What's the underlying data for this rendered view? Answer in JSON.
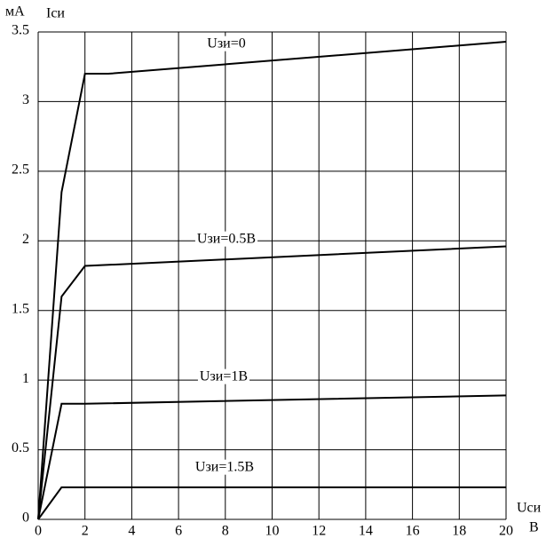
{
  "chart_data": {
    "type": "line",
    "y_unit": "мА",
    "y_label": "Iси",
    "x_label": "Uси",
    "x_unit": "В",
    "xlim": [
      0,
      20
    ],
    "xticks": [
      0,
      2,
      4,
      6,
      8,
      10,
      12,
      14,
      16,
      18,
      20
    ],
    "ylim": [
      0,
      3.5
    ],
    "yticks": [
      0,
      0.5,
      1,
      1.5,
      2,
      2.5,
      3,
      3.5
    ],
    "grid": true,
    "series": [
      {
        "name": "Uзи=0",
        "color": "#000000",
        "x": [
          0,
          1,
          2,
          3,
          20
        ],
        "values": [
          0,
          2.35,
          3.2,
          3.2,
          3.43
        ]
      },
      {
        "name": "Uзи=0.5В",
        "color": "#000000",
        "x": [
          0,
          1,
          2,
          20
        ],
        "values": [
          0,
          1.6,
          1.82,
          1.96
        ]
      },
      {
        "name": "Uзи=1В",
        "color": "#000000",
        "x": [
          0,
          1,
          2,
          20
        ],
        "values": [
          0,
          0.83,
          0.83,
          0.89
        ]
      },
      {
        "name": "Uзи=1.5В",
        "color": "#000000",
        "x": [
          0,
          1,
          20
        ],
        "values": [
          0,
          0.23,
          0.23
        ]
      }
    ]
  }
}
